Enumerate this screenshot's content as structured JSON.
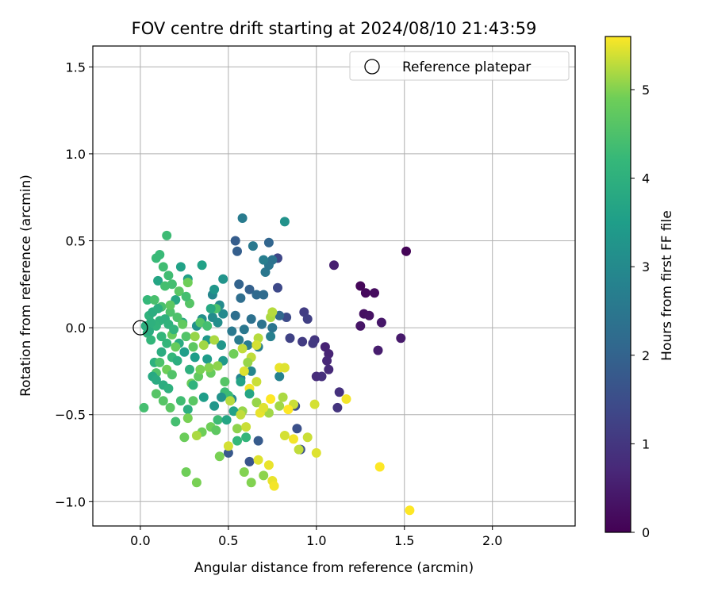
{
  "chart_data": {
    "type": "scatter",
    "title": "FOV centre drift starting at 2024/08/10 21:43:59",
    "xlabel": "Angular distance from reference (arcmin)",
    "ylabel": "Rotation from reference (arcmin)",
    "xlim": [
      -0.27,
      2.47
    ],
    "ylim": [
      -1.14,
      1.62
    ],
    "xticks": [
      0.0,
      0.5,
      1.0,
      1.5,
      2.0
    ],
    "xtick_labels": [
      "0.0",
      "0.5",
      "1.0",
      "1.5",
      "2.0"
    ],
    "yticks": [
      -1.0,
      -0.5,
      0.0,
      0.5,
      1.0,
      1.5
    ],
    "ytick_labels": [
      "−1.0",
      "−0.5",
      "0.0",
      "0.5",
      "1.0",
      "1.5"
    ],
    "grid": true,
    "colormap": "viridis",
    "colorbar": {
      "label": "Hours from first FF file",
      "range": [
        0,
        5.6
      ],
      "ticks": [
        0,
        1,
        2,
        3,
        4,
        5
      ],
      "tick_labels": [
        "0",
        "1",
        "2",
        "3",
        "4",
        "5"
      ]
    },
    "legend": {
      "position": "top-right",
      "entries": [
        {
          "label": "Reference platepar",
          "marker": "open-circle"
        }
      ]
    },
    "reference_point": {
      "x": 0.0,
      "y": 0.0
    },
    "points": [
      {
        "x": 1.51,
        "y": 0.44,
        "c": 0.05
      },
      {
        "x": 1.25,
        "y": 0.24,
        "c": 0.1
      },
      {
        "x": 1.28,
        "y": 0.2,
        "c": 0.15
      },
      {
        "x": 1.33,
        "y": 0.2,
        "c": 0.2
      },
      {
        "x": 1.27,
        "y": 0.08,
        "c": 0.25
      },
      {
        "x": 1.3,
        "y": 0.07,
        "c": 0.3
      },
      {
        "x": 1.25,
        "y": 0.01,
        "c": 0.35
      },
      {
        "x": 1.37,
        "y": 0.03,
        "c": 0.4
      },
      {
        "x": 1.48,
        "y": -0.06,
        "c": 0.45
      },
      {
        "x": 1.35,
        "y": -0.13,
        "c": 0.5
      },
      {
        "x": 1.1,
        "y": 0.36,
        "c": 0.55
      },
      {
        "x": 1.05,
        "y": -0.11,
        "c": 0.6
      },
      {
        "x": 1.07,
        "y": -0.15,
        "c": 0.65
      },
      {
        "x": 1.06,
        "y": -0.19,
        "c": 0.7
      },
      {
        "x": 1.07,
        "y": -0.24,
        "c": 0.75
      },
      {
        "x": 1.0,
        "y": -0.28,
        "c": 0.8
      },
      {
        "x": 1.03,
        "y": -0.28,
        "c": 0.85
      },
      {
        "x": 1.13,
        "y": -0.37,
        "c": 0.9
      },
      {
        "x": 1.12,
        "y": -0.46,
        "c": 0.95
      },
      {
        "x": 0.99,
        "y": -0.07,
        "c": 1.0
      },
      {
        "x": 0.98,
        "y": -0.09,
        "c": 1.05
      },
      {
        "x": 0.92,
        "y": -0.08,
        "c": 1.1
      },
      {
        "x": 0.93,
        "y": 0.09,
        "c": 1.15
      },
      {
        "x": 0.95,
        "y": 0.05,
        "c": 1.2
      },
      {
        "x": 0.85,
        "y": -0.06,
        "c": 1.25
      },
      {
        "x": 0.78,
        "y": 0.4,
        "c": 1.35
      },
      {
        "x": 0.78,
        "y": 0.23,
        "c": 1.4
      },
      {
        "x": 0.83,
        "y": 0.06,
        "c": 1.45
      },
      {
        "x": 0.88,
        "y": -0.45,
        "c": 1.5
      },
      {
        "x": 0.89,
        "y": -0.58,
        "c": 1.55
      },
      {
        "x": 0.91,
        "y": -0.7,
        "c": 1.6
      },
      {
        "x": 0.62,
        "y": -0.77,
        "c": 1.65
      },
      {
        "x": 0.5,
        "y": -0.72,
        "c": 1.75
      },
      {
        "x": 0.67,
        "y": -0.65,
        "c": 1.8
      },
      {
        "x": 0.54,
        "y": 0.5,
        "c": 1.85
      },
      {
        "x": 0.55,
        "y": 0.44,
        "c": 1.9
      },
      {
        "x": 0.62,
        "y": 0.22,
        "c": 1.95
      },
      {
        "x": 0.56,
        "y": 0.25,
        "c": 2.0
      },
      {
        "x": 0.73,
        "y": 0.49,
        "c": 2.05
      },
      {
        "x": 0.79,
        "y": 0.07,
        "c": 2.1
      },
      {
        "x": 0.66,
        "y": 0.19,
        "c": 2.15
      },
      {
        "x": 0.7,
        "y": 0.19,
        "c": 2.2
      },
      {
        "x": 0.57,
        "y": 0.17,
        "c": 2.25
      },
      {
        "x": 0.54,
        "y": 0.07,
        "c": 2.3
      },
      {
        "x": 0.63,
        "y": 0.05,
        "c": 2.35
      },
      {
        "x": 0.69,
        "y": 0.02,
        "c": 2.4
      },
      {
        "x": 0.75,
        "y": 0.0,
        "c": 2.45
      },
      {
        "x": 0.59,
        "y": -0.01,
        "c": 2.5
      },
      {
        "x": 0.52,
        "y": -0.02,
        "c": 2.55
      },
      {
        "x": 0.56,
        "y": -0.07,
        "c": 2.6
      },
      {
        "x": 0.61,
        "y": -0.1,
        "c": 2.65
      },
      {
        "x": 0.67,
        "y": -0.11,
        "c": 2.7
      },
      {
        "x": 0.74,
        "y": -0.05,
        "c": 2.75
      },
      {
        "x": 0.79,
        "y": -0.28,
        "c": 2.8
      },
      {
        "x": 0.57,
        "y": -0.29,
        "c": 2.85
      },
      {
        "x": 0.63,
        "y": -0.25,
        "c": 2.9
      },
      {
        "x": 0.52,
        "y": -0.41,
        "c": 2.95
      },
      {
        "x": 0.58,
        "y": 0.63,
        "c": 2.6
      },
      {
        "x": 0.64,
        "y": 0.47,
        "c": 2.55
      },
      {
        "x": 0.71,
        "y": 0.32,
        "c": 2.5
      },
      {
        "x": 0.73,
        "y": 0.36,
        "c": 2.45
      },
      {
        "x": 0.75,
        "y": 0.39,
        "c": 2.4
      },
      {
        "x": 0.7,
        "y": 0.39,
        "c": 2.7
      },
      {
        "x": 0.82,
        "y": 0.61,
        "c": 3.2
      },
      {
        "x": 0.41,
        "y": 0.19,
        "c": 2.9
      },
      {
        "x": 0.45,
        "y": 0.13,
        "c": 3.0
      },
      {
        "x": 0.47,
        "y": 0.08,
        "c": 3.0
      },
      {
        "x": 0.41,
        "y": 0.06,
        "c": 3.05
      },
      {
        "x": 0.44,
        "y": 0.03,
        "c": 3.1
      },
      {
        "x": 0.35,
        "y": 0.05,
        "c": 3.15
      },
      {
        "x": 0.32,
        "y": 0.01,
        "c": 3.2
      },
      {
        "x": 0.47,
        "y": 0.28,
        "c": 3.25
      },
      {
        "x": 0.42,
        "y": 0.22,
        "c": 3.3
      },
      {
        "x": 0.38,
        "y": -0.07,
        "c": 3.35
      },
      {
        "x": 0.47,
        "y": -0.19,
        "c": 3.4
      },
      {
        "x": 0.38,
        "y": -0.18,
        "c": 3.45
      },
      {
        "x": 0.31,
        "y": -0.17,
        "c": 3.5
      },
      {
        "x": 0.25,
        "y": -0.14,
        "c": 3.5
      },
      {
        "x": 0.27,
        "y": 0.28,
        "c": 3.55
      },
      {
        "x": 0.23,
        "y": 0.35,
        "c": 3.6
      },
      {
        "x": 0.35,
        "y": 0.36,
        "c": 3.6
      },
      {
        "x": 0.1,
        "y": 0.27,
        "c": 3.7
      },
      {
        "x": 0.2,
        "y": 0.16,
        "c": 3.75
      },
      {
        "x": 0.24,
        "y": 0.03,
        "c": 3.8
      },
      {
        "x": 0.22,
        "y": -0.09,
        "c": 3.85
      },
      {
        "x": 0.13,
        "y": -0.33,
        "c": 3.9
      },
      {
        "x": 0.27,
        "y": -0.47,
        "c": 3.95
      },
      {
        "x": 0.16,
        "y": -0.35,
        "c": 4.0
      },
      {
        "x": 0.08,
        "y": -0.2,
        "c": 4.0
      },
      {
        "x": 0.11,
        "y": 0.04,
        "c": 4.05
      },
      {
        "x": 0.05,
        "y": 0.07,
        "c": 4.05
      },
      {
        "x": 0.09,
        "y": 0.01,
        "c": 4.1
      },
      {
        "x": 0.04,
        "y": -0.03,
        "c": 4.1
      },
      {
        "x": 0.06,
        "y": -0.07,
        "c": 4.15
      },
      {
        "x": 0.15,
        "y": -0.09,
        "c": 4.15
      },
      {
        "x": 0.18,
        "y": -0.17,
        "c": 4.2
      },
      {
        "x": 0.04,
        "y": 0.16,
        "c": 4.2
      },
      {
        "x": 0.09,
        "y": 0.4,
        "c": 4.25
      },
      {
        "x": 0.11,
        "y": 0.42,
        "c": 4.25
      },
      {
        "x": 0.15,
        "y": 0.53,
        "c": 4.3
      },
      {
        "x": 0.13,
        "y": 0.35,
        "c": 4.35
      },
      {
        "x": 0.16,
        "y": 0.3,
        "c": 4.35
      },
      {
        "x": 0.18,
        "y": 0.25,
        "c": 4.4
      },
      {
        "x": 0.14,
        "y": 0.24,
        "c": 4.4
      },
      {
        "x": 0.08,
        "y": 0.16,
        "c": 4.45
      },
      {
        "x": 0.12,
        "y": 0.12,
        "c": 4.45
      },
      {
        "x": 0.17,
        "y": 0.09,
        "c": 4.5
      },
      {
        "x": 0.21,
        "y": 0.06,
        "c": 4.5
      },
      {
        "x": 0.26,
        "y": -0.05,
        "c": 4.55
      },
      {
        "x": 0.09,
        "y": -0.26,
        "c": 4.55
      },
      {
        "x": 0.09,
        "y": -0.38,
        "c": 4.6
      },
      {
        "x": 0.13,
        "y": -0.42,
        "c": 4.6
      },
      {
        "x": 0.17,
        "y": -0.46,
        "c": 4.65
      },
      {
        "x": 0.02,
        "y": -0.46,
        "c": 4.4
      },
      {
        "x": 0.44,
        "y": -0.53,
        "c": 4.3
      },
      {
        "x": 0.5,
        "y": -0.39,
        "c": 4.25
      },
      {
        "x": 0.55,
        "y": -0.65,
        "c": 4.2
      },
      {
        "x": 0.6,
        "y": -0.63,
        "c": 4.15
      },
      {
        "x": 0.48,
        "y": -0.37,
        "c": 4.3
      },
      {
        "x": 0.23,
        "y": -0.42,
        "c": 4.35
      },
      {
        "x": 0.2,
        "y": -0.54,
        "c": 4.4
      },
      {
        "x": 0.43,
        "y": 0.11,
        "c": 4.5
      },
      {
        "x": 0.34,
        "y": 0.03,
        "c": 4.6
      },
      {
        "x": 0.3,
        "y": -0.11,
        "c": 4.7
      },
      {
        "x": 0.33,
        "y": -0.28,
        "c": 4.75
      },
      {
        "x": 0.4,
        "y": -0.26,
        "c": 4.8
      },
      {
        "x": 0.29,
        "y": -0.32,
        "c": 4.85
      },
      {
        "x": 0.25,
        "y": -0.63,
        "c": 4.85
      },
      {
        "x": 0.35,
        "y": -0.6,
        "c": 4.9
      },
      {
        "x": 0.4,
        "y": -0.57,
        "c": 4.9
      },
      {
        "x": 0.45,
        "y": -0.74,
        "c": 4.95
      },
      {
        "x": 0.27,
        "y": -0.52,
        "c": 4.95
      },
      {
        "x": 0.26,
        "y": -0.83,
        "c": 4.9
      },
      {
        "x": 0.32,
        "y": -0.89,
        "c": 4.95
      },
      {
        "x": 0.59,
        "y": -0.83,
        "c": 5.0
      },
      {
        "x": 0.63,
        "y": -0.89,
        "c": 5.0
      },
      {
        "x": 0.7,
        "y": -0.85,
        "c": 5.05
      },
      {
        "x": 0.55,
        "y": -0.58,
        "c": 5.05
      },
      {
        "x": 0.58,
        "y": -0.48,
        "c": 5.1
      },
      {
        "x": 0.66,
        "y": -0.43,
        "c": 5.1
      },
      {
        "x": 0.73,
        "y": -0.49,
        "c": 5.15
      },
      {
        "x": 0.79,
        "y": -0.45,
        "c": 5.15
      },
      {
        "x": 0.81,
        "y": -0.4,
        "c": 5.2
      },
      {
        "x": 0.74,
        "y": 0.06,
        "c": 5.2
      },
      {
        "x": 0.75,
        "y": 0.09,
        "c": 5.25
      },
      {
        "x": 0.67,
        "y": -0.06,
        "c": 5.25
      },
      {
        "x": 0.58,
        "y": -0.12,
        "c": 5.3
      },
      {
        "x": 0.63,
        "y": -0.17,
        "c": 5.3
      },
      {
        "x": 0.66,
        "y": -0.31,
        "c": 5.35
      },
      {
        "x": 0.87,
        "y": -0.44,
        "c": 5.35
      },
      {
        "x": 0.99,
        "y": -0.44,
        "c": 5.4
      },
      {
        "x": 0.95,
        "y": -0.63,
        "c": 5.35
      },
      {
        "x": 0.82,
        "y": -0.62,
        "c": 5.4
      },
      {
        "x": 0.9,
        "y": -0.7,
        "c": 5.3
      },
      {
        "x": 1.0,
        "y": -0.72,
        "c": 5.45
      },
      {
        "x": 0.67,
        "y": -0.76,
        "c": 5.45
      },
      {
        "x": 0.73,
        "y": -0.79,
        "c": 5.5
      },
      {
        "x": 0.75,
        "y": -0.88,
        "c": 5.5
      },
      {
        "x": 0.76,
        "y": -0.91,
        "c": 5.55
      },
      {
        "x": 0.87,
        "y": -0.64,
        "c": 5.55
      },
      {
        "x": 0.62,
        "y": -0.35,
        "c": 5.55
      },
      {
        "x": 0.79,
        "y": -0.23,
        "c": 5.5
      },
      {
        "x": 0.82,
        "y": -0.23,
        "c": 5.45
      },
      {
        "x": 0.66,
        "y": -0.1,
        "c": 5.4
      },
      {
        "x": 1.36,
        "y": -0.8,
        "c": 5.6
      },
      {
        "x": 1.53,
        "y": -1.05,
        "c": 5.6
      },
      {
        "x": 1.17,
        "y": -0.41,
        "c": 5.55
      },
      {
        "x": 0.24,
        "y": 0.02,
        "c": 4.75
      },
      {
        "x": 0.18,
        "y": -0.04,
        "c": 4.8
      },
      {
        "x": 0.2,
        "y": -0.11,
        "c": 4.8
      },
      {
        "x": 0.15,
        "y": -0.24,
        "c": 4.9
      },
      {
        "x": 0.05,
        "y": -0.02,
        "c": 3.9
      },
      {
        "x": 0.07,
        "y": -0.28,
        "c": 3.8
      },
      {
        "x": 0.09,
        "y": -0.3,
        "c": 3.85
      },
      {
        "x": 0.12,
        "y": -0.14,
        "c": 3.9
      },
      {
        "x": 0.21,
        "y": -0.19,
        "c": 3.95
      },
      {
        "x": 0.28,
        "y": -0.24,
        "c": 4.0
      },
      {
        "x": 0.3,
        "y": -0.33,
        "c": 4.05
      },
      {
        "x": 0.36,
        "y": -0.4,
        "c": 3.5
      },
      {
        "x": 0.42,
        "y": -0.45,
        "c": 3.3
      },
      {
        "x": 0.46,
        "y": -0.4,
        "c": 3.2
      },
      {
        "x": 0.4,
        "y": 0.11,
        "c": 3.8
      },
      {
        "x": 0.46,
        "y": -0.1,
        "c": 3.3
      },
      {
        "x": 0.53,
        "y": -0.48,
        "c": 3.6
      },
      {
        "x": 0.49,
        "y": -0.53,
        "c": 3.7
      },
      {
        "x": 0.57,
        "y": -0.31,
        "c": 3.65
      },
      {
        "x": 0.62,
        "y": -0.38,
        "c": 3.7
      },
      {
        "x": 0.38,
        "y": 0.01,
        "c": 4.4
      },
      {
        "x": 0.28,
        "y": 0.14,
        "c": 4.6
      },
      {
        "x": 0.22,
        "y": 0.21,
        "c": 4.65
      },
      {
        "x": 0.26,
        "y": 0.18,
        "c": 4.4
      },
      {
        "x": 0.27,
        "y": 0.26,
        "c": 4.9
      },
      {
        "x": 0.17,
        "y": 0.13,
        "c": 4.7
      },
      {
        "x": 0.07,
        "y": 0.09,
        "c": 3.9
      },
      {
        "x": 0.1,
        "y": 0.11,
        "c": 3.95
      },
      {
        "x": 0.14,
        "y": 0.05,
        "c": 4.0
      },
      {
        "x": 0.16,
        "y": 0.02,
        "c": 4.05
      },
      {
        "x": 0.19,
        "y": -0.01,
        "c": 4.1
      },
      {
        "x": 0.12,
        "y": -0.05,
        "c": 4.15
      },
      {
        "x": 0.03,
        "y": 0.01,
        "c": 3.95
      },
      {
        "x": 0.06,
        "y": 0.03,
        "c": 4.0
      },
      {
        "x": 0.11,
        "y": -0.2,
        "c": 4.5
      },
      {
        "x": 0.18,
        "y": -0.27,
        "c": 4.55
      },
      {
        "x": 0.34,
        "y": -0.24,
        "c": 4.95
      },
      {
        "x": 0.39,
        "y": -0.23,
        "c": 5.0
      },
      {
        "x": 0.44,
        "y": -0.22,
        "c": 5.05
      },
      {
        "x": 0.31,
        "y": -0.05,
        "c": 5.1
      },
      {
        "x": 0.36,
        "y": -0.1,
        "c": 5.15
      },
      {
        "x": 0.42,
        "y": -0.07,
        "c": 5.2
      },
      {
        "x": 0.51,
        "y": -0.42,
        "c": 5.25
      },
      {
        "x": 0.57,
        "y": -0.5,
        "c": 5.3
      },
      {
        "x": 0.6,
        "y": -0.57,
        "c": 5.35
      },
      {
        "x": 0.5,
        "y": -0.68,
        "c": 5.4
      },
      {
        "x": 0.68,
        "y": -0.49,
        "c": 5.5
      },
      {
        "x": 0.7,
        "y": -0.46,
        "c": 5.45
      },
      {
        "x": 0.74,
        "y": -0.41,
        "c": 5.6
      },
      {
        "x": 0.84,
        "y": -0.47,
        "c": 5.6
      },
      {
        "x": 0.59,
        "y": -0.25,
        "c": 5.45
      },
      {
        "x": 0.61,
        "y": -0.2,
        "c": 5.1
      },
      {
        "x": 0.53,
        "y": -0.15,
        "c": 4.9
      },
      {
        "x": 0.48,
        "y": -0.31,
        "c": 4.6
      },
      {
        "x": 0.43,
        "y": -0.59,
        "c": 4.7
      },
      {
        "x": 0.3,
        "y": -0.42,
        "c": 4.65
      },
      {
        "x": 0.32,
        "y": -0.62,
        "c": 5.2
      }
    ]
  }
}
